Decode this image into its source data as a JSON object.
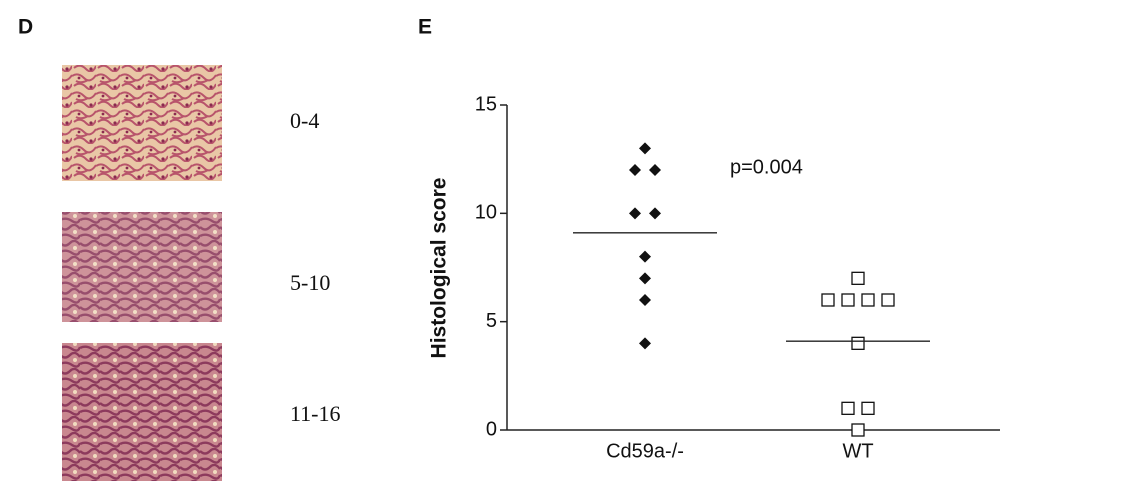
{
  "panel_labels": [
    "D",
    "E"
  ],
  "histology": {
    "labels": [
      "0-4",
      "5-10",
      "11-16"
    ]
  },
  "chart_data": {
    "type": "dotplot",
    "ylabel": "Histological score",
    "annotation": "p=0.004",
    "categories": [
      "Cd59a-/-",
      "WT"
    ],
    "values": [
      [
        13,
        12,
        12,
        10,
        10,
        8,
        7,
        6,
        4
      ],
      [
        7,
        6,
        6,
        6,
        6,
        4,
        1,
        1,
        0
      ]
    ],
    "markers": [
      "diamond",
      "square"
    ],
    "means": [
      9.1,
      4.1
    ],
    "color": "#111111",
    "ylim": [
      0,
      15
    ],
    "yticks": [
      0,
      5,
      10,
      15
    ]
  }
}
